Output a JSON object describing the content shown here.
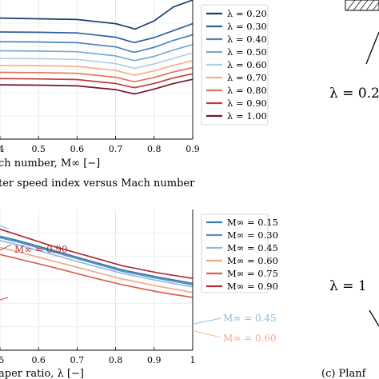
{
  "chart_data": [
    {
      "type": "line",
      "caption": "ter speed index versus Mach number",
      "xlabel": "ch number, M∞ [−]",
      "xticks": [
        ".4",
        "0.5",
        "0.6",
        "0.7",
        "0.8",
        "0.9"
      ],
      "xlim": [
        0.4,
        0.9
      ],
      "ylim": [
        0,
        1
      ],
      "x": [
        0.4,
        0.5,
        0.6,
        0.7,
        0.74,
        0.75,
        0.8,
        0.85,
        0.9
      ],
      "grid": true,
      "legend_position": "top-right",
      "series": [
        {
          "name": "λ = 0.20",
          "color": "#1f3a6e",
          "values": [
            0.87,
            0.865,
            0.86,
            0.83,
            0.8,
            0.79,
            0.85,
            0.95,
            1.0
          ]
        },
        {
          "name": "λ = 0.30",
          "color": "#2e5e9e",
          "values": [
            0.77,
            0.768,
            0.763,
            0.733,
            0.7,
            0.695,
            0.73,
            0.78,
            0.83
          ]
        },
        {
          "name": "λ = 0.40",
          "color": "#4b84bb",
          "values": [
            0.7,
            0.698,
            0.693,
            0.663,
            0.63,
            0.625,
            0.66,
            0.71,
            0.75
          ]
        },
        {
          "name": "λ = 0.50",
          "color": "#77aad2",
          "values": [
            0.635,
            0.633,
            0.628,
            0.598,
            0.57,
            0.565,
            0.595,
            0.64,
            0.68
          ]
        },
        {
          "name": "λ = 0.60",
          "color": "#b3cfe4",
          "values": [
            0.58,
            0.578,
            0.573,
            0.543,
            0.515,
            0.51,
            0.54,
            0.58,
            0.62
          ]
        },
        {
          "name": "λ = 0.70",
          "color": "#f4b08c",
          "values": [
            0.53,
            0.528,
            0.523,
            0.493,
            0.465,
            0.46,
            0.49,
            0.53,
            0.565
          ]
        },
        {
          "name": "λ = 0.80",
          "color": "#e2775a",
          "values": [
            0.48,
            0.478,
            0.473,
            0.445,
            0.418,
            0.413,
            0.443,
            0.483,
            0.515
          ]
        },
        {
          "name": "λ = 0.90",
          "color": "#c23b37",
          "values": [
            0.435,
            0.433,
            0.428,
            0.4,
            0.375,
            0.37,
            0.4,
            0.44,
            0.47
          ]
        },
        {
          "name": "λ = 1.00",
          "color": "#7a1331",
          "values": [
            0.39,
            0.388,
            0.383,
            0.356,
            0.33,
            0.325,
            0.36,
            0.4,
            0.43
          ]
        }
      ]
    },
    {
      "type": "line",
      "xlabel": "aper ratio, λ [−]",
      "xticks": [
        ".5",
        "0.6",
        "0.7",
        "0.8",
        "0.9",
        "1"
      ],
      "xlim": [
        0.45,
        1.0
      ],
      "ylim": [
        0,
        1
      ],
      "x": [
        0.45,
        0.5,
        0.6,
        0.7,
        0.8,
        0.9,
        1.0
      ],
      "grid": true,
      "legend_position": "top-right",
      "annotations": [
        "M∞ = 0.90",
        "M∞ = 0.45",
        "M∞ = 0.60"
      ],
      "series": [
        {
          "name": "M∞ = 0.15",
          "color": "#3a78b0",
          "values": [
            0.81,
            0.78,
            0.71,
            0.64,
            0.57,
            0.52,
            0.475
          ]
        },
        {
          "name": "M∞ = 0.30",
          "color": "#5b8fbf",
          "values": [
            0.8,
            0.77,
            0.7,
            0.63,
            0.56,
            0.51,
            0.465
          ]
        },
        {
          "name": "M∞ = 0.45",
          "color": "#8fbcdc",
          "values": [
            0.78,
            0.75,
            0.68,
            0.61,
            0.545,
            0.495,
            0.45
          ]
        },
        {
          "name": "M∞ = 0.60",
          "color": "#f2a98a",
          "values": [
            0.73,
            0.7,
            0.635,
            0.57,
            0.505,
            0.455,
            0.41
          ]
        },
        {
          "name": "M∞ = 0.75",
          "color": "#d9624e",
          "values": [
            0.68,
            0.65,
            0.59,
            0.525,
            0.465,
            0.415,
            0.375
          ]
        },
        {
          "name": "M∞ = 0.90",
          "color": "#b02d34",
          "values": [
            0.86,
            0.82,
            0.74,
            0.67,
            0.6,
            0.55,
            0.51
          ]
        }
      ]
    }
  ],
  "right_panel": {
    "upper_label": "λ = 0.2",
    "lower_label": "λ = 1",
    "caption": "(c)  Planf"
  }
}
